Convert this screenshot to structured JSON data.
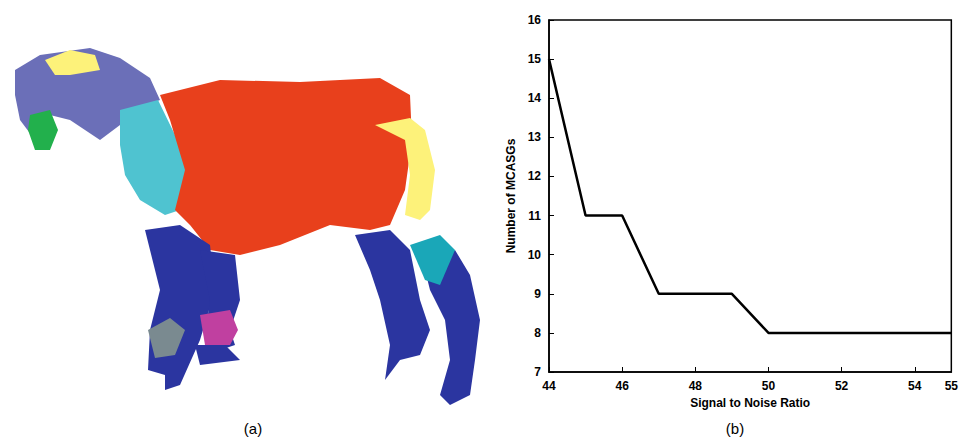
{
  "chart_data": {
    "type": "line",
    "xlabel": "Signal to Noise Ratio",
    "ylabel": "Number of MCASGs",
    "x": [
      44,
      45,
      46,
      47,
      48,
      49,
      50,
      51,
      52,
      53,
      54,
      55
    ],
    "values": [
      15,
      11,
      11,
      9,
      9,
      9,
      8,
      8,
      8,
      8,
      8,
      8
    ],
    "color": "#000000",
    "xlim": [
      44,
      55
    ],
    "xticks": [
      44,
      46,
      48,
      50,
      52,
      54
    ],
    "ylim": [
      7,
      16
    ],
    "yticks": [
      7,
      8,
      9,
      10,
      11,
      12,
      13,
      14,
      15,
      16
    ],
    "grid": false
  },
  "panel_labels": [
    "(a)",
    "(b)"
  ]
}
